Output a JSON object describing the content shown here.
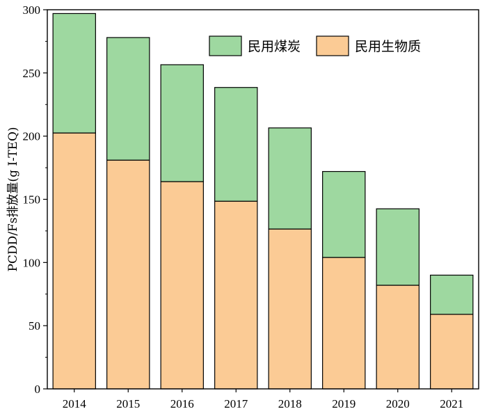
{
  "chart_data": {
    "type": "bar",
    "stacked": true,
    "categories": [
      "2014",
      "2015",
      "2016",
      "2017",
      "2018",
      "2019",
      "2020",
      "2021"
    ],
    "series": [
      {
        "name": "民用生物质",
        "color": "#FBCB95",
        "values": [
          202.5,
          181,
          164,
          148.5,
          126.5,
          104,
          82,
          59
        ]
      },
      {
        "name": "民用煤炭",
        "color": "#9ED8A0",
        "values": [
          94.5,
          97,
          92.5,
          90,
          80,
          68,
          60.5,
          31
        ]
      }
    ],
    "ylabel": "PCDD/Fs排放量(g I-TEQ)",
    "xlabel": "",
    "ylim": [
      0,
      300
    ],
    "yticks": [
      "0",
      "50",
      "100",
      "150",
      "200",
      "250",
      "300"
    ],
    "legend_position": "top-right",
    "grid": false
  }
}
